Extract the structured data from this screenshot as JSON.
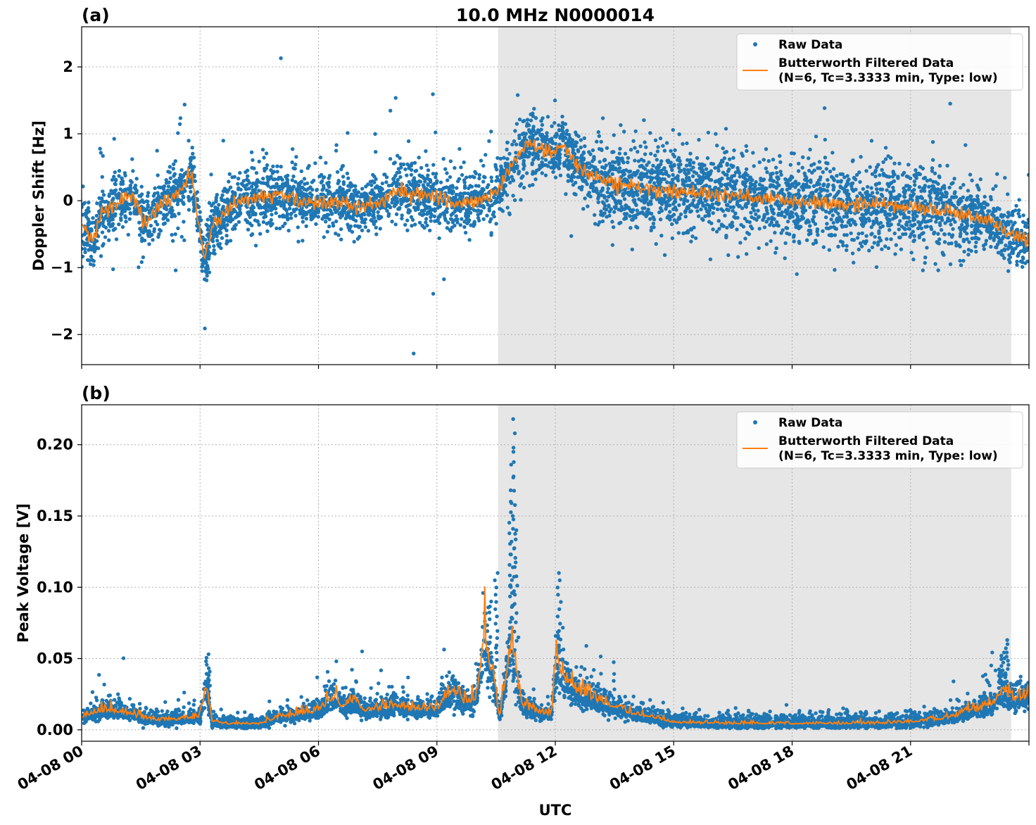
{
  "figure": {
    "title": "10.0 MHz N0000014",
    "xlabel": "UTC"
  },
  "colors": {
    "raw": "#1f77b4",
    "filtered": "#ff7f0e",
    "shade": "#e6e6e6",
    "grid": "#b0b0b0"
  },
  "chart_data": [
    {
      "type": "scatter",
      "panel_label": "(a)",
      "ylabel": "Doppler Shift [Hz]",
      "xlim": [
        0,
        24
      ],
      "ylim": [
        -2.45,
        2.6
      ],
      "x_unit": "hours UTC on 04-08",
      "yticks": [
        -2,
        -1,
        0,
        1,
        2
      ],
      "ytick_labels": [
        "−2",
        "−1",
        "0",
        "1",
        "2"
      ],
      "xticks": [
        0,
        3,
        6,
        9,
        12,
        15,
        18,
        21
      ],
      "shaded_interval": [
        10.55,
        23.55
      ],
      "grid": true,
      "legend_position": "top-right",
      "legend": {
        "raw": "Raw Data",
        "filtered_line1": "Butterworth Filtered Data",
        "filtered_line2": "(N=6, Tc=3.3333 min, Type: low)"
      },
      "series": [
        {
          "name": "Butterworth Filtered Data",
          "x": [
            0,
            0.3,
            0.5,
            0.8,
            1.0,
            1.3,
            1.6,
            2.0,
            2.4,
            2.8,
            3.0,
            3.1,
            3.3,
            3.6,
            4.0,
            4.5,
            5.0,
            5.5,
            6.0,
            6.5,
            7.0,
            7.5,
            8.0,
            8.5,
            9.0,
            9.5,
            10.0,
            10.5,
            10.8,
            11.1,
            11.3,
            11.6,
            11.9,
            12.2,
            12.5,
            13.0,
            13.5,
            14.0,
            15.0,
            16.0,
            17.0,
            18.0,
            19.0,
            20.0,
            21.0,
            22.0,
            23.0,
            23.5,
            24.0
          ],
          "values": [
            -0.35,
            -0.6,
            -0.2,
            -0.1,
            0.05,
            0.1,
            -0.35,
            -0.05,
            0.1,
            0.4,
            -0.5,
            -0.9,
            -0.4,
            -0.2,
            0.0,
            0.05,
            0.1,
            0.0,
            -0.05,
            0.0,
            -0.1,
            -0.05,
            0.15,
            0.1,
            0.05,
            -0.05,
            0.0,
            0.1,
            0.45,
            0.7,
            0.85,
            0.8,
            0.7,
            0.85,
            0.55,
            0.35,
            0.25,
            0.2,
            0.15,
            0.1,
            0.05,
            0.0,
            -0.05,
            -0.05,
            -0.1,
            -0.15,
            -0.3,
            -0.5,
            -0.6
          ]
        }
      ]
    },
    {
      "type": "scatter",
      "panel_label": "(b)",
      "ylabel": "Peak Voltage [V]",
      "xlim": [
        0,
        24
      ],
      "ylim": [
        -0.008,
        0.228
      ],
      "x_unit": "hours UTC on 04-08",
      "yticks": [
        0.0,
        0.05,
        0.1,
        0.15,
        0.2
      ],
      "ytick_labels": [
        "0.00",
        "0.05",
        "0.10",
        "0.15",
        "0.20"
      ],
      "xticks": [
        0,
        3,
        6,
        9,
        12,
        15,
        18,
        21
      ],
      "xtick_labels": [
        "04-08 00",
        "04-08 03",
        "04-08 06",
        "04-08 09",
        "04-08 12",
        "04-08 15",
        "04-08 18",
        "04-08 21"
      ],
      "shaded_interval": [
        10.55,
        23.55
      ],
      "grid": true,
      "legend_position": "top-right",
      "legend": {
        "raw": "Raw Data",
        "filtered_line1": "Butterworth Filtered Data",
        "filtered_line2": "(N=6, Tc=3.3333 min, Type: low)"
      },
      "series": [
        {
          "name": "Butterworth Filtered Data",
          "x": [
            0,
            0.5,
            1.0,
            1.5,
            2.0,
            2.5,
            3.0,
            3.15,
            3.3,
            3.6,
            4.0,
            4.5,
            5.0,
            5.5,
            6.0,
            6.3,
            6.6,
            6.9,
            7.2,
            7.6,
            8.0,
            8.5,
            9.0,
            9.4,
            9.7,
            10.0,
            10.2,
            10.4,
            10.6,
            10.8,
            10.9,
            11.0,
            11.2,
            11.5,
            11.9,
            12.05,
            12.2,
            12.5,
            13.0,
            13.5,
            14.0,
            14.5,
            15.0,
            16.0,
            17.0,
            18.0,
            19.0,
            20.0,
            21.0,
            22.0,
            22.5,
            23.0,
            23.3,
            23.6,
            24.0
          ],
          "values": [
            0.008,
            0.012,
            0.012,
            0.008,
            0.006,
            0.007,
            0.008,
            0.028,
            0.006,
            0.004,
            0.004,
            0.004,
            0.008,
            0.01,
            0.012,
            0.02,
            0.015,
            0.018,
            0.012,
            0.014,
            0.016,
            0.012,
            0.014,
            0.025,
            0.018,
            0.02,
            0.06,
            0.035,
            0.008,
            0.045,
            0.06,
            0.03,
            0.015,
            0.012,
            0.01,
            0.045,
            0.035,
            0.025,
            0.02,
            0.015,
            0.01,
            0.008,
            0.005,
            0.004,
            0.004,
            0.004,
            0.004,
            0.004,
            0.005,
            0.008,
            0.012,
            0.015,
            0.025,
            0.02,
            0.022
          ]
        }
      ]
    }
  ]
}
